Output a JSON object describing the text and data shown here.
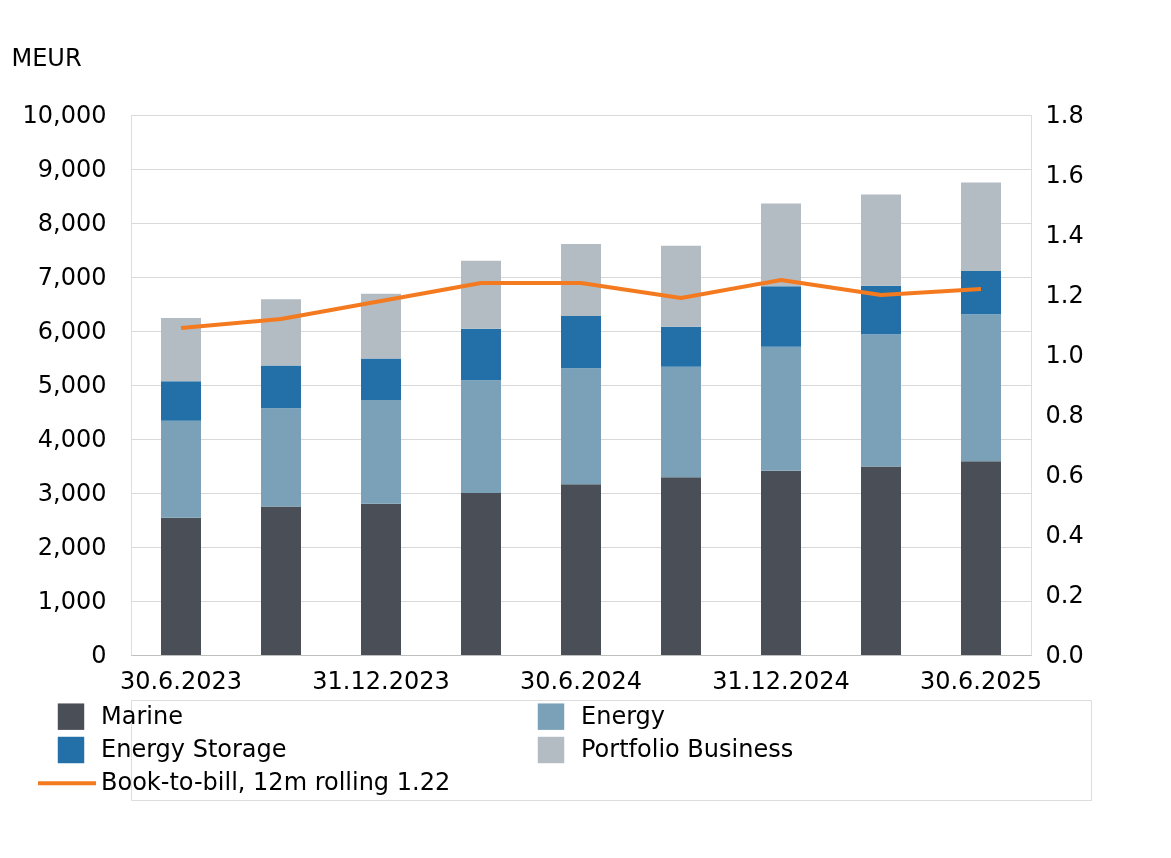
{
  "chart_data": {
    "type": "bar",
    "stacked": true,
    "ylabel": "MEUR",
    "categories": [
      "30.6.2023",
      null,
      "31.12.2023",
      null,
      "30.6.2024",
      null,
      "31.12.2024",
      null,
      "30.6.2025"
    ],
    "series": [
      {
        "name": "Marine",
        "color": "#4a4f57",
        "values": [
          2540,
          2750,
          2800,
          3000,
          3160,
          3290,
          3410,
          3490,
          3590
        ]
      },
      {
        "name": "Energy",
        "color": "#7ba1b8",
        "values": [
          1800,
          1820,
          1920,
          2090,
          2150,
          2050,
          2300,
          2450,
          2720
        ]
      },
      {
        "name": "Energy Storage",
        "color": "#2370a8",
        "values": [
          730,
          790,
          770,
          950,
          970,
          740,
          1120,
          900,
          800
        ]
      },
      {
        "name": "Portfolio Business",
        "color": "#b3bcc3",
        "values": [
          1170,
          1230,
          1200,
          1260,
          1330,
          1500,
          1530,
          1690,
          1640
        ]
      },
      {
        "name": "Book-to-bill, 12m rolling 1.22",
        "type": "line",
        "axis": "y2",
        "color": "#f47a20",
        "values": [
          1.09,
          1.12,
          1.18,
          1.24,
          1.24,
          1.19,
          1.25,
          1.2,
          1.22
        ]
      }
    ],
    "ylim": [
      0,
      10000
    ],
    "yticks": [
      0,
      {
        "value": 1000,
        "label": "1,000"
      },
      {
        "value": 2000,
        "label": "2,000"
      },
      {
        "value": 3000,
        "label": "3,000"
      },
      {
        "value": 4000,
        "label": "4,000"
      },
      {
        "value": 5000,
        "label": "5,000"
      },
      {
        "value": 6000,
        "label": "6,000"
      },
      {
        "value": 7000,
        "label": "7,000"
      },
      {
        "value": 8000,
        "label": "8,000"
      },
      {
        "value": 9000,
        "label": "9,000"
      },
      {
        "value": 10000,
        "label": "10,000"
      }
    ],
    "y2lim": [
      0,
      1.8
    ],
    "y2ticks": [
      {
        "value": 0,
        "label": "0.0"
      },
      0.2,
      0.4,
      0.6,
      0.8,
      {
        "value": 1,
        "label": "1.0"
      },
      1.2,
      1.4,
      1.6,
      1.8
    ],
    "grid": "y",
    "legend": "bottom",
    "marker": "none",
    "line_style": "solid"
  }
}
